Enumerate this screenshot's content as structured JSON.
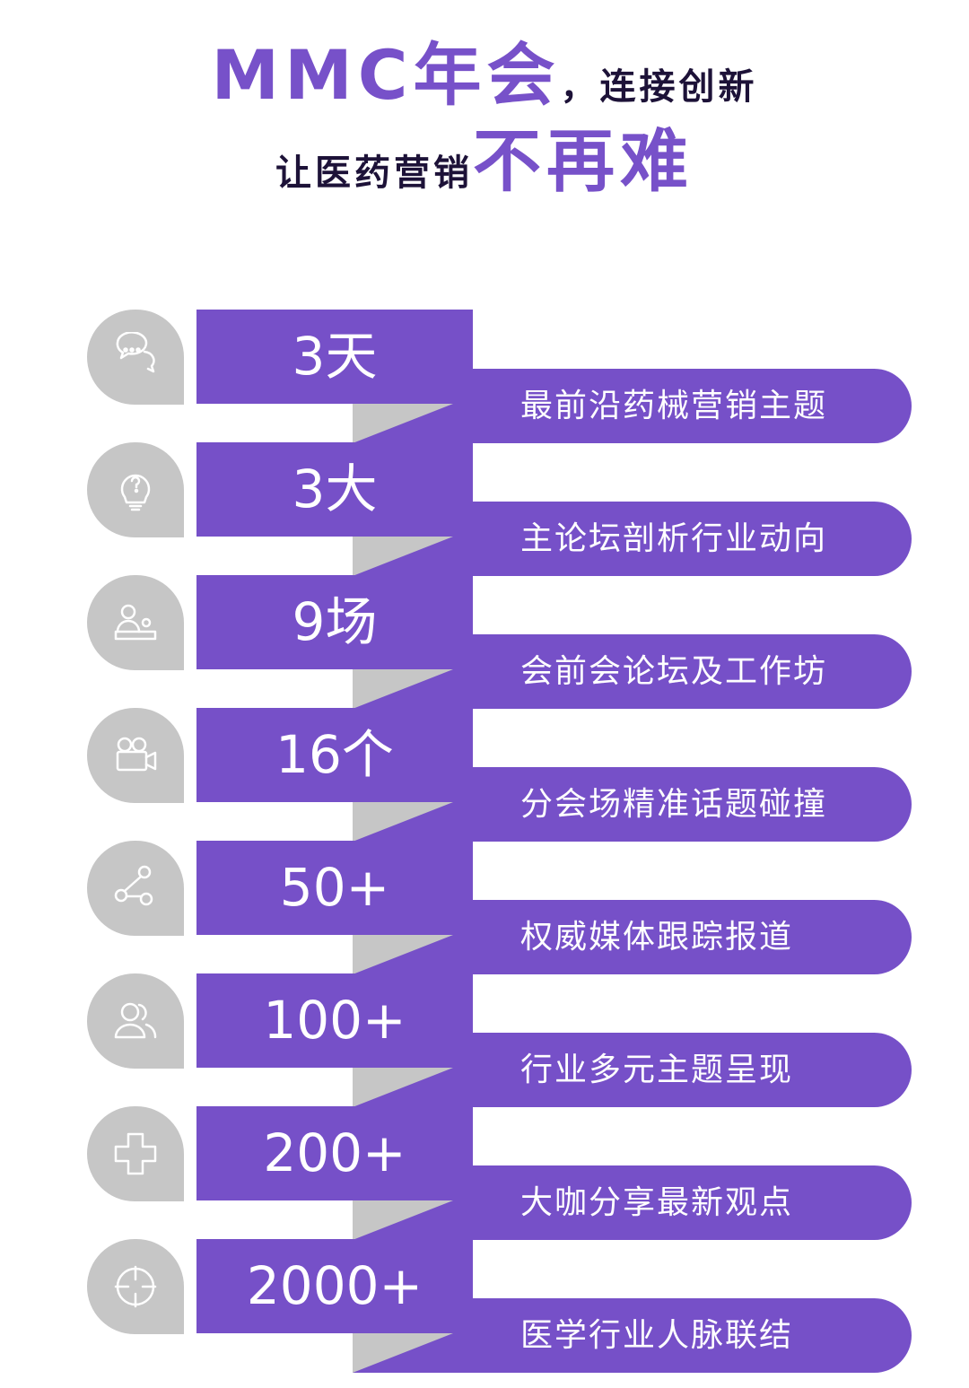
{
  "title": {
    "line1_highlight": "MMC年会",
    "line1_rest": "，连接创新",
    "line2_rest": "让医药营销",
    "line2_highlight": "不再难"
  },
  "colors": {
    "purple": "#7650c8",
    "gray": "#c6c6c6",
    "dark": "#1d1238"
  },
  "items": [
    {
      "icon": "chat-bubbles-icon",
      "number": "3天",
      "desc": "最前沿药械营销主题"
    },
    {
      "icon": "lightbulb-question-icon",
      "number": "3大",
      "desc": "主论坛剖析行业动向"
    },
    {
      "icon": "speaker-podium-icon",
      "number": "9场",
      "desc": "会前会论坛及工作坊"
    },
    {
      "icon": "video-camera-icon",
      "number": "16个",
      "desc": "分会场精准话题碰撞"
    },
    {
      "icon": "share-nodes-icon",
      "number": "50+",
      "desc": "权威媒体跟踪报道"
    },
    {
      "icon": "users-icon",
      "number": "100+",
      "desc": "行业多元主题呈现"
    },
    {
      "icon": "medical-cross-icon",
      "number": "200+",
      "desc": "大咖分享最新观点"
    },
    {
      "icon": "crosshair-icon",
      "number": "2000+",
      "desc": "医学行业人脉联结"
    }
  ]
}
